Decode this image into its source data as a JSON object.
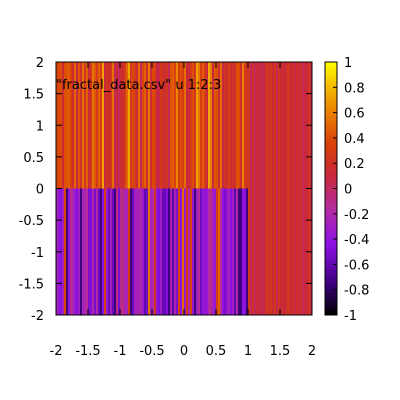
{
  "chart_data": {
    "type": "heatmap",
    "title": "",
    "xlabel": "",
    "ylabel": "",
    "key_entry": "\"fractal_data.csv\" u 1:2:3",
    "xlim": [
      -2,
      2
    ],
    "ylim": [
      -2,
      2
    ],
    "x_ticks": [
      "-2",
      "-1.5",
      "-1",
      "-0.5",
      "0",
      "0.5",
      "1",
      "1.5",
      "2"
    ],
    "y_ticks": [
      "-2",
      "-1.5",
      "-1",
      "-0.5",
      "0",
      "0.5",
      "1",
      "1.5",
      "2"
    ],
    "colorbar": {
      "range": [
        -1,
        1
      ],
      "ticks": [
        "-1",
        "-0.8",
        "-0.6",
        "-0.4",
        "-0.2",
        "0",
        "0.2",
        "0.4",
        "0.6",
        "0.8",
        "1"
      ],
      "palette": "gnuplot default (black-purple-red-orange-yellow)"
    },
    "regions": [
      {
        "x_range": [
          -2,
          1
        ],
        "y_range": [
          0,
          2
        ],
        "approx_value": 0.3
      },
      {
        "x_range": [
          -2,
          1
        ],
        "y_range": [
          -2,
          0
        ],
        "approx_value": -0.35
      },
      {
        "x_range": [
          1,
          2
        ],
        "y_range": [
          -2,
          2
        ],
        "approx_value": 0.15
      }
    ],
    "grid": false
  }
}
